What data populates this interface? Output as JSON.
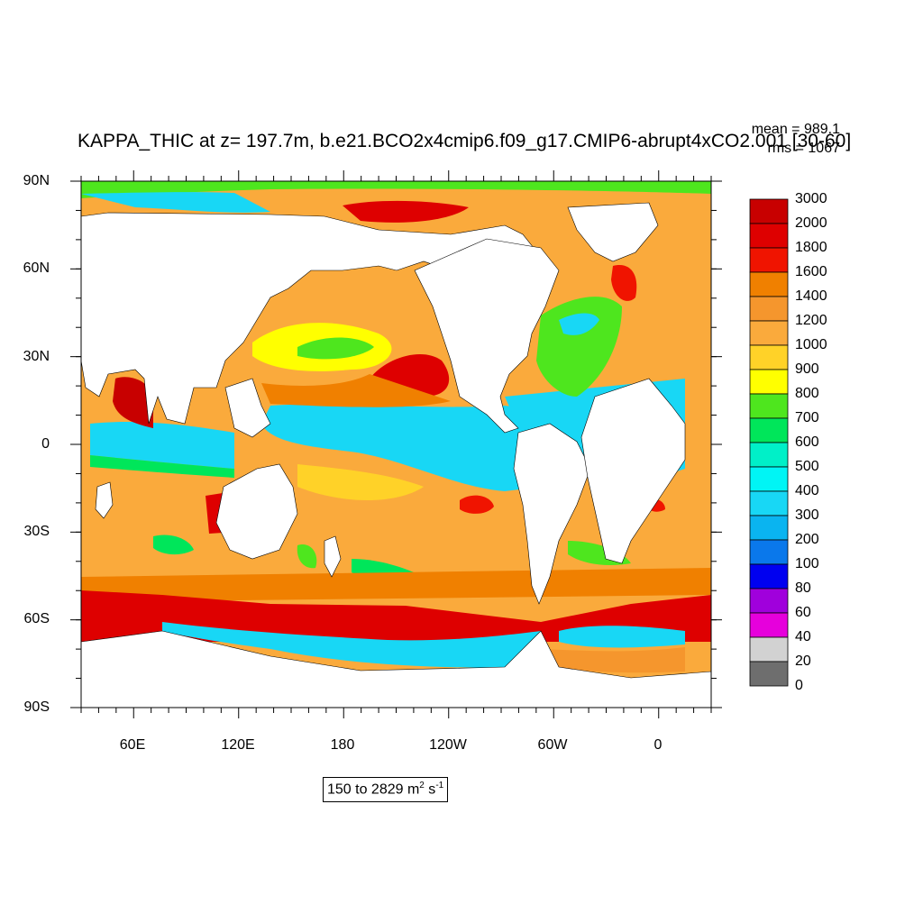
{
  "title": "KAPPA_THIC at z= 197.7m, b.e21.BCO2x4cmip6.f09_g17.CMIP6-abrupt4xCO2.001 [30-60]",
  "stats": {
    "mean": "mean = 989.1",
    "rms": "rms = 1067"
  },
  "range": {
    "text": "150 to 2829 m",
    "exp1": "2",
    "mid": " s",
    "exp2": "-1"
  },
  "axes": {
    "y_ticks": [
      "90N",
      "60N",
      "30N",
      "0",
      "30S",
      "60S",
      "90S"
    ],
    "x_ticks": [
      "60E",
      "120E",
      "180",
      "120W",
      "60W",
      "0"
    ]
  },
  "colorbar": {
    "labels": [
      "3000",
      "2000",
      "1800",
      "1600",
      "1400",
      "1200",
      "1000",
      "900",
      "800",
      "700",
      "600",
      "500",
      "400",
      "300",
      "200",
      "100",
      "80",
      "60",
      "40",
      "20",
      "0"
    ],
    "colors": [
      "#c80000",
      "#de0000",
      "#f01400",
      "#f08000",
      "#f5962d",
      "#faaa3c",
      "#ffd228",
      "#ffff00",
      "#4ee61e",
      "#00e65a",
      "#00f0c8",
      "#00f5f5",
      "#18d7f5",
      "#0ab4f0",
      "#0a78eb",
      "#0000f0",
      "#a000dc",
      "#e600dc",
      "#d2d2d2",
      "#6e6e6e"
    ]
  },
  "colors": {
    "land": "#ffffff",
    "frame": "#000000"
  }
}
